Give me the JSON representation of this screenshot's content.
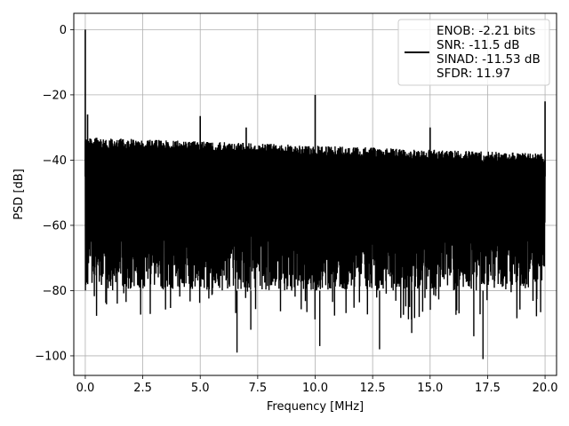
{
  "chart_data": {
    "type": "line",
    "xlabel": "Frequency [MHz]",
    "ylabel": "PSD [dB]",
    "xlim": [
      -0.5,
      20.5
    ],
    "ylim": [
      -106,
      5
    ],
    "xticks": [
      0.0,
      2.5,
      5.0,
      7.5,
      10.0,
      12.5,
      15.0,
      17.5,
      20.0
    ],
    "xtick_labels": [
      "0.0",
      "2.5",
      "5.0",
      "7.5",
      "10.0",
      "12.5",
      "15.0",
      "17.5",
      "20.0"
    ],
    "yticks": [
      0,
      -20,
      -40,
      -60,
      -80,
      -100
    ],
    "ytick_labels": [
      "0",
      "−20",
      "−40",
      "−60",
      "−80",
      "−100"
    ],
    "grid": true,
    "legend_position": "top-right",
    "legend_lines": [
      "ENOB: -2.21 bits",
      "SNR: -11.5 dB",
      "SINAD: -11.53 dB",
      "SFDR: 11.97"
    ],
    "line_color": "#000000",
    "noise_band": {
      "x_start": 0.0,
      "x_end": 20.0,
      "upper_start": -33,
      "upper_end": -38,
      "lower_min": -101,
      "upper_max": -31
    },
    "spikes": [
      {
        "x": 0.0,
        "y": 0
      },
      {
        "x": 0.1,
        "y": -26
      },
      {
        "x": 5.0,
        "y": -26.5
      },
      {
        "x": 7.0,
        "y": -30
      },
      {
        "x": 10.0,
        "y": -20
      },
      {
        "x": 15.0,
        "y": -30
      },
      {
        "x": 20.0,
        "y": -22
      }
    ],
    "dips": [
      {
        "x": 6.6,
        "y": -99
      },
      {
        "x": 10.2,
        "y": -97
      },
      {
        "x": 12.8,
        "y": -98
      },
      {
        "x": 17.3,
        "y": -101
      },
      {
        "x": 7.2,
        "y": -92
      },
      {
        "x": 14.2,
        "y": -93
      },
      {
        "x": 16.9,
        "y": -94
      }
    ]
  }
}
